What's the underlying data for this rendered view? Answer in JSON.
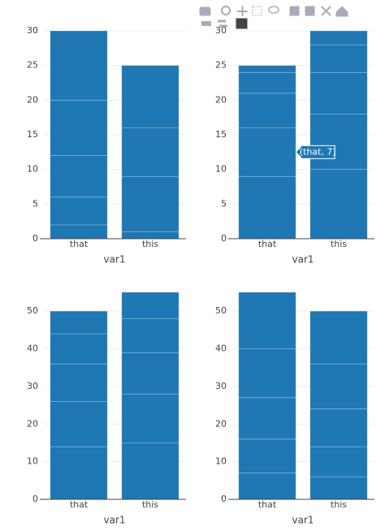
{
  "chart_data": [
    {
      "type": "bar",
      "categories": [
        "that",
        "this"
      ],
      "xlabel": "var1",
      "ylim": [
        0,
        30
      ],
      "yticks": [
        0,
        5,
        10,
        15,
        20,
        25,
        30
      ],
      "grid": true,
      "series": [
        {
          "color": "#1f77b4",
          "values": [
            2,
            1
          ]
        },
        {
          "color": "#1f77b4",
          "values": [
            4,
            8
          ]
        },
        {
          "color": "#1f77b4",
          "values": [
            6,
            7
          ]
        },
        {
          "color": "#1f77b4",
          "values": [
            8,
            9
          ]
        },
        {
          "color": "#1f77b4",
          "values": [
            10,
            null
          ]
        }
      ]
    },
    {
      "type": "bar",
      "categories": [
        "that",
        "this"
      ],
      "xlabel": "var1",
      "ylim": [
        0,
        30
      ],
      "yticks": [
        0,
        5,
        10,
        15,
        20,
        25,
        30
      ],
      "grid": true,
      "hover_label": "(that, 7)",
      "series": [
        {
          "color": "#1f77b4",
          "values": [
            9,
            10
          ]
        },
        {
          "color": "#1f77b4",
          "values": [
            7,
            8
          ]
        },
        {
          "color": "#1f77b4",
          "values": [
            5,
            6
          ]
        },
        {
          "color": "#1f77b4",
          "values": [
            3,
            4
          ]
        },
        {
          "color": "#1f77b4",
          "values": [
            1,
            2
          ]
        }
      ]
    },
    {
      "type": "bar",
      "categories": [
        "that",
        "this"
      ],
      "xlabel": "var1",
      "ylim": [
        0,
        55
      ],
      "yticks": [
        0,
        10,
        20,
        30,
        40,
        50
      ],
      "grid": true,
      "series": [
        {
          "color": "#1f77b4",
          "values": [
            14,
            15
          ]
        },
        {
          "color": "#1f77b4",
          "values": [
            12,
            13
          ]
        },
        {
          "color": "#1f77b4",
          "values": [
            10,
            11
          ]
        },
        {
          "color": "#1f77b4",
          "values": [
            8,
            9
          ]
        },
        {
          "color": "#1f77b4",
          "values": [
            6,
            7
          ]
        }
      ]
    },
    {
      "type": "bar",
      "categories": [
        "that",
        "this"
      ],
      "xlabel": "var1",
      "ylim": [
        0,
        55
      ],
      "yticks": [
        0,
        10,
        20,
        30,
        40,
        50
      ],
      "grid": true,
      "series": [
        {
          "color": "#1f77b4",
          "values": [
            7,
            6
          ]
        },
        {
          "color": "#1f77b4",
          "values": [
            9,
            8
          ]
        },
        {
          "color": "#1f77b4",
          "values": [
            11,
            10
          ]
        },
        {
          "color": "#1f77b4",
          "values": [
            13,
            12
          ]
        },
        {
          "color": "#1f77b4",
          "values": [
            15,
            14
          ]
        }
      ]
    }
  ]
}
